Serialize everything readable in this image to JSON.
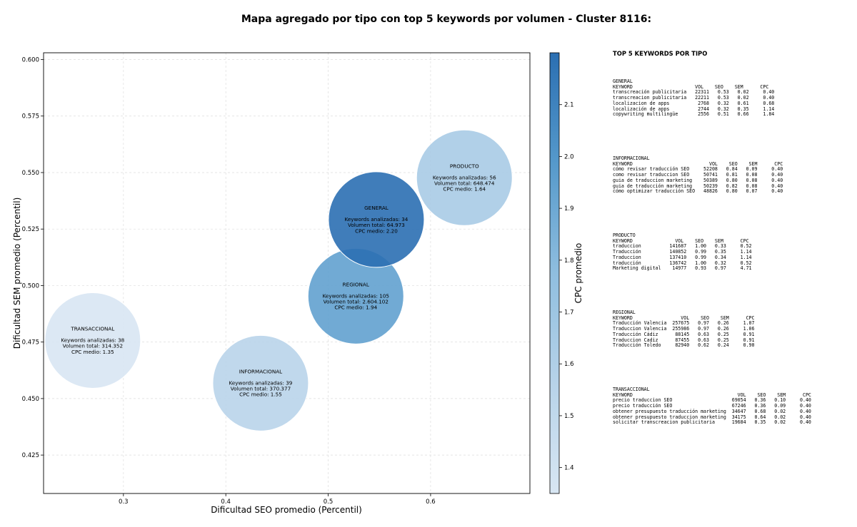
{
  "chart_data": {
    "type": "scatter",
    "title": "Mapa agregado por tipo con top 5 keywords por volumen - Cluster 8116:",
    "xlabel": "Dificultad SEO promedio (Percentil)",
    "ylabel": "Dificultad SEM promedio (Percentil)",
    "colorbar_label": "CPC promedio",
    "xlim": [
      0.222,
      0.697
    ],
    "ylim": [
      0.408,
      0.603
    ],
    "x_ticks": [
      0.3,
      0.4,
      0.5,
      0.6
    ],
    "x_tick_labels": [
      "0.3",
      "0.4",
      "0.5",
      "0.6"
    ],
    "y_ticks": [
      0.425,
      0.45,
      0.475,
      0.5,
      0.525,
      0.55,
      0.575,
      0.6
    ],
    "y_tick_labels": [
      "0.425",
      "0.450",
      "0.475",
      "0.500",
      "0.525",
      "0.550",
      "0.575",
      "0.600"
    ],
    "colorbar_range": [
      1.35,
      2.2
    ],
    "colorbar_ticks": [
      1.4,
      1.5,
      1.6,
      1.7,
      1.8,
      1.9,
      2.0,
      2.1
    ],
    "colorbar_tick_labels": [
      "1.4",
      "1.5",
      "1.6",
      "1.7",
      "1.8",
      "1.9",
      "2.0",
      "2.1"
    ],
    "grid": true,
    "points": [
      {
        "name": "TRANSACCIONAL",
        "x": 0.27,
        "y": 0.4757,
        "cpc": 1.35,
        "lines": [
          "Keywords analizadas: 38",
          "Volumen total: 314.352",
          "CPC medio: 1.35"
        ]
      },
      {
        "name": "INFORMACIONAL",
        "x": 0.434,
        "y": 0.4568,
        "cpc": 1.55,
        "lines": [
          "Keywords analizadas: 39",
          "Volumen total: 370.377",
          "CPC medio: 1.55"
        ]
      },
      {
        "name": "REGIONAL",
        "x": 0.527,
        "y": 0.4953,
        "cpc": 1.94,
        "lines": [
          "Keywords analizadas: 105",
          "Volumen total: 2.604.102",
          "CPC medio: 1.94"
        ]
      },
      {
        "name": "GENERAL",
        "x": 0.547,
        "y": 0.5292,
        "cpc": 2.2,
        "lines": [
          "Keywords analizadas: 34",
          "Volumen total: 64.973",
          "CPC medio: 2.20"
        ]
      },
      {
        "name": "PRODUCTO",
        "x": 0.633,
        "y": 0.5477,
        "cpc": 1.64,
        "lines": [
          "Keywords analizadas: 56",
          "Volumen total: 648.474",
          "CPC medio: 1.64"
        ]
      }
    ]
  },
  "panel": {
    "title": "TOP 5 KEYWORDS POR TIPO",
    "groups": [
      {
        "name": "GENERAL",
        "header": "KEYWORD                      VOL    SEO    SEM      CPC",
        "rows": [
          "transcreación publicitaria   22311   0.53   0.02     0.40",
          "transcreacion publicitaria   22211   0.53   0.02     0.40",
          "localizacion de apps          2768   0.32   0.61     0.68",
          "localización de apps          2744   0.32   0.35     1.14",
          "copywriting multilingüe       2556   0.51   0.66     1.84"
        ]
      },
      {
        "name": "INFORMACIONAL",
        "header": "KEYWORD                           VOL    SEO    SEM      CPC",
        "rows": [
          "cómo revisar traducción SEO     52208   0.84   0.09     0.40",
          "como revisar traduccion SEO     50741   0.81   0.08     0.40",
          "guia de traduccion marketing    50389   0.80   0.08     0.40",
          "guia de traducción marketing    50239   0.82   0.08     0.40",
          "cómo optimizar traducción SEO   48826   0.80   0.07     0.40"
        ]
      },
      {
        "name": "PRODUCTO",
        "header": "KEYWORD               VOL    SEO    SEM      CPC",
        "rows": [
          "traduccion          141687   1.00   0.33     0.52",
          "Traducción          140852   0.99   0.35     1.14",
          "Traduccion          137410   0.99   0.34     1.14",
          "traducción          136742   1.00   0.32     0.52",
          "Marketing digital    14977   0.93   0.97     4.71"
        ]
      },
      {
        "name": "REGIONAL",
        "header": "KEYWORD                 VOL    SEO    SEM      CPC",
        "rows": [
          "Traducción Valencia  257675   0.97   0.26     1.07",
          "Traduccion Valencia  255986   0.97   0.26     1.06",
          "Traducción Cádiz      88145   0.63   0.25     0.91",
          "Traduccion Cadiz      87455   0.63   0.25     0.91",
          "Traducción Toledo     82940   0.62   0.24     0.90"
        ]
      },
      {
        "name": "TRANSACCIONAL",
        "header": "KEYWORD                                     VOL    SEO    SEM      CPC",
        "rows": [
          "precio traduccion SEO                     69054   0.36   0.10     0.40",
          "precio traducción SEO                     67246   0.36   0.09     0.40",
          "obtener presupuesto traducción marketing  34647   0.68   0.02     0.40",
          "obtener presupuesto traduccion marketing  34175   0.64   0.02     0.40",
          "solicitar transcreacion publicitaria      19684   0.35   0.02     0.40"
        ]
      }
    ]
  }
}
